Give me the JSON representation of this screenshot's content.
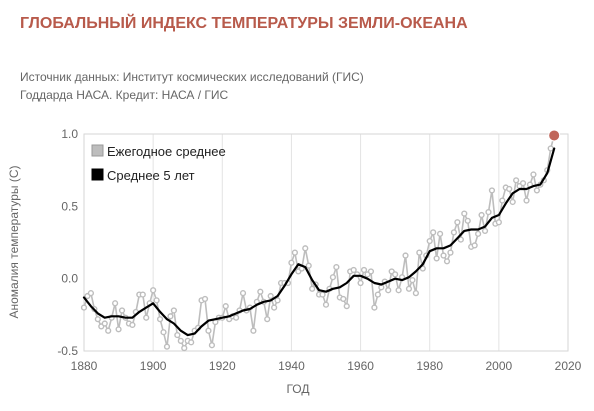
{
  "header": {
    "title": "ГЛОБАЛЬНЫЙ ИНДЕКС ТЕМПЕРАТУРЫ ЗЕМЛИ-ОКЕАНА",
    "source_line1": "Источник данных: Институт космических исследований (ГИС)",
    "source_line2": "Годдарда НАСА. Кредит: НАСА / ГИС"
  },
  "chart_data": {
    "type": "line",
    "title": "ГЛОБАЛЬНЫЙ ИНДЕКС ТЕМПЕРАТУРЫ ЗЕМЛИ-ОКЕАНА",
    "xlabel": "ГОД",
    "ylabel": "Аномалия температуры (C)",
    "xlim": [
      1880,
      2020
    ],
    "ylim": [
      -0.5,
      1.0
    ],
    "x_ticks": [
      1880,
      1900,
      1920,
      1940,
      1960,
      1980,
      2000,
      2020
    ],
    "y_ticks": [
      -0.5,
      0.0,
      0.5,
      1.0
    ],
    "y_tick_labels": [
      "-0.5",
      "0.0",
      "0.5",
      "1.0"
    ],
    "grid": "vertical",
    "legend_position": "top-left",
    "colors": {
      "annual": "#bdbdbd",
      "smooth": "#000000",
      "highlight": "#c0665a"
    },
    "series": [
      {
        "name": "Ежегодное среднее",
        "x": [
          1880,
          1881,
          1882,
          1883,
          1884,
          1885,
          1886,
          1887,
          1888,
          1889,
          1890,
          1891,
          1892,
          1893,
          1894,
          1895,
          1896,
          1897,
          1898,
          1899,
          1900,
          1901,
          1902,
          1903,
          1904,
          1905,
          1906,
          1907,
          1908,
          1909,
          1910,
          1911,
          1912,
          1913,
          1914,
          1915,
          1916,
          1917,
          1918,
          1919,
          1920,
          1921,
          1922,
          1923,
          1924,
          1925,
          1926,
          1927,
          1928,
          1929,
          1930,
          1931,
          1932,
          1933,
          1934,
          1935,
          1936,
          1937,
          1938,
          1939,
          1940,
          1941,
          1942,
          1943,
          1944,
          1945,
          1946,
          1947,
          1948,
          1949,
          1950,
          1951,
          1952,
          1953,
          1954,
          1955,
          1956,
          1957,
          1958,
          1959,
          1960,
          1961,
          1962,
          1963,
          1964,
          1965,
          1966,
          1967,
          1968,
          1969,
          1970,
          1971,
          1972,
          1973,
          1974,
          1975,
          1976,
          1977,
          1978,
          1979,
          1980,
          1981,
          1982,
          1983,
          1984,
          1985,
          1986,
          1987,
          1988,
          1989,
          1990,
          1991,
          1992,
          1993,
          1994,
          1995,
          1996,
          1997,
          1998,
          1999,
          2000,
          2001,
          2002,
          2003,
          2004,
          2005,
          2006,
          2007,
          2008,
          2009,
          2010,
          2011,
          2012,
          2013,
          2014,
          2015,
          2016
        ],
        "values": [
          -0.2,
          -0.12,
          -0.1,
          -0.21,
          -0.28,
          -0.33,
          -0.31,
          -0.36,
          -0.27,
          -0.17,
          -0.35,
          -0.22,
          -0.27,
          -0.31,
          -0.32,
          -0.23,
          -0.11,
          -0.11,
          -0.27,
          -0.17,
          -0.08,
          -0.15,
          -0.28,
          -0.37,
          -0.47,
          -0.26,
          -0.22,
          -0.39,
          -0.43,
          -0.48,
          -0.43,
          -0.44,
          -0.36,
          -0.34,
          -0.15,
          -0.14,
          -0.36,
          -0.46,
          -0.3,
          -0.27,
          -0.27,
          -0.19,
          -0.28,
          -0.26,
          -0.27,
          -0.22,
          -0.1,
          -0.22,
          -0.2,
          -0.36,
          -0.16,
          -0.09,
          -0.16,
          -0.28,
          -0.12,
          -0.2,
          -0.15,
          -0.03,
          -0.03,
          -0.03,
          0.11,
          0.18,
          0.05,
          0.07,
          0.21,
          0.09,
          -0.07,
          -0.04,
          -0.11,
          -0.11,
          -0.18,
          -0.07,
          0.01,
          0.08,
          -0.13,
          -0.14,
          -0.19,
          0.05,
          0.06,
          0.03,
          -0.03,
          0.06,
          0.03,
          0.05,
          -0.2,
          -0.11,
          -0.06,
          -0.02,
          -0.08,
          0.05,
          0.03,
          -0.08,
          0.01,
          0.16,
          -0.07,
          -0.01,
          -0.1,
          0.18,
          0.07,
          0.16,
          0.26,
          0.32,
          0.14,
          0.31,
          0.16,
          0.12,
          0.18,
          0.32,
          0.39,
          0.27,
          0.45,
          0.4,
          0.22,
          0.23,
          0.31,
          0.44,
          0.33,
          0.46,
          0.61,
          0.38,
          0.39,
          0.54,
          0.63,
          0.62,
          0.53,
          0.68,
          0.64,
          0.66,
          0.54,
          0.65,
          0.72,
          0.61,
          0.65,
          0.68,
          0.75,
          0.9,
          0.99
        ]
      },
      {
        "name": "Среднее 5 лет",
        "x": [
          1880,
          1882,
          1884,
          1886,
          1888,
          1890,
          1892,
          1894,
          1896,
          1898,
          1900,
          1902,
          1904,
          1906,
          1908,
          1910,
          1912,
          1914,
          1916,
          1918,
          1920,
          1922,
          1924,
          1926,
          1928,
          1930,
          1932,
          1934,
          1936,
          1938,
          1940,
          1942,
          1944,
          1946,
          1948,
          1950,
          1952,
          1954,
          1956,
          1958,
          1960,
          1962,
          1964,
          1966,
          1968,
          1970,
          1972,
          1974,
          1976,
          1978,
          1980,
          1982,
          1984,
          1986,
          1988,
          1990,
          1992,
          1994,
          1996,
          1998,
          2000,
          2002,
          2004,
          2006,
          2008,
          2010,
          2012,
          2014,
          2016
        ],
        "values": [
          -0.13,
          -0.19,
          -0.24,
          -0.27,
          -0.26,
          -0.26,
          -0.27,
          -0.27,
          -0.23,
          -0.2,
          -0.17,
          -0.23,
          -0.28,
          -0.31,
          -0.36,
          -0.39,
          -0.38,
          -0.33,
          -0.29,
          -0.28,
          -0.27,
          -0.26,
          -0.24,
          -0.22,
          -0.21,
          -0.18,
          -0.16,
          -0.15,
          -0.12,
          -0.05,
          0.03,
          0.1,
          0.08,
          -0.01,
          -0.08,
          -0.09,
          -0.07,
          -0.06,
          -0.03,
          0.02,
          0.02,
          0.0,
          -0.03,
          -0.04,
          -0.02,
          0.0,
          -0.01,
          0.01,
          0.05,
          0.1,
          0.19,
          0.21,
          0.21,
          0.23,
          0.28,
          0.33,
          0.34,
          0.34,
          0.36,
          0.42,
          0.44,
          0.52,
          0.59,
          0.62,
          0.62,
          0.64,
          0.65,
          0.73,
          0.9
        ]
      }
    ],
    "highlight_point": {
      "x": 2016,
      "y": 0.99
    }
  }
}
